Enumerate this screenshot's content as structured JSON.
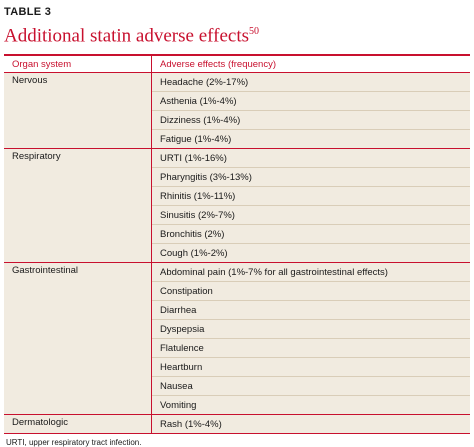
{
  "table": {
    "label": "TABLE 3",
    "title": "Additional statin adverse effects",
    "title_superscript": "50",
    "columns": [
      "Organ system",
      "Adverse effects (frequency)"
    ],
    "groups": [
      {
        "organ": "Nervous",
        "effects": [
          "Headache (2%-17%)",
          "Asthenia (1%-4%)",
          "Dizziness (1%-4%)",
          "Fatigue (1%-4%)"
        ]
      },
      {
        "organ": "Respiratory",
        "effects": [
          "URTI (1%-16%)",
          "Pharyngitis (3%-13%)",
          "Rhinitis (1%-11%)",
          "Sinusitis (2%-7%)",
          "Bronchitis (2%)",
          "Cough (1%-2%)"
        ]
      },
      {
        "organ": "Gastrointestinal",
        "effects": [
          "Abdominal pain (1%-7% for all gastrointestinal effects)",
          "Constipation",
          "Diarrhea",
          "Dyspepsia",
          "Flatulence",
          "Heartburn",
          "Nausea",
          "Vomiting"
        ]
      },
      {
        "organ": "Dermatologic",
        "effects": [
          "Rash (1%-4%)"
        ]
      }
    ],
    "footnote": "URTI, upper respiratory tract infection."
  },
  "colors": {
    "accent": "#c8102e",
    "shading": "#f1ebe0"
  }
}
